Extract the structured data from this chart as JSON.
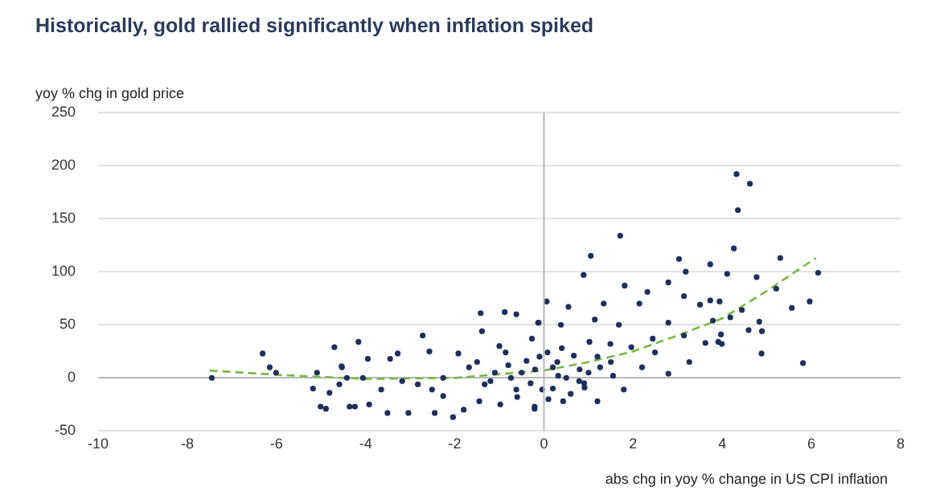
{
  "chart_data": {
    "type": "scatter",
    "title": "Historically, gold rallied significantly when inflation spiked",
    "xlabel": "abs chg in yoy % change in US CPI inflation",
    "ylabel": "yoy % chg in gold price",
    "xlim": [
      -10,
      8
    ],
    "xticks": [
      -10,
      -8,
      -6,
      -4,
      -2,
      0,
      2,
      4,
      6,
      8
    ],
    "ylim": [
      -50,
      250
    ],
    "yticks": [
      -50,
      0,
      50,
      100,
      150,
      200,
      250
    ],
    "grid": "y",
    "legend": false,
    "ref_lines": [
      {
        "axis": "x",
        "value": 0,
        "color": "#b8b8b8"
      }
    ],
    "marker": "circle",
    "series": [
      {
        "type": "scatter",
        "color": "#1f2f5c",
        "x": [
          4.32,
          4.62,
          4.35,
          4.26,
          5.3,
          3.73,
          4.11,
          4.77,
          6.15,
          3.73,
          3.94,
          5.21,
          4.44,
          4.18,
          5.56,
          5.96,
          4.83,
          4.59,
          4.89,
          3.97,
          3.91,
          3.99,
          3.62,
          4.88,
          5.81,
          1.71,
          1.05,
          0.89,
          3.03,
          3.18,
          1.81,
          2.32,
          2.79,
          3.14,
          0.06,
          0.55,
          1.34,
          2.14,
          3.5,
          -0.13,
          0.38,
          1.14,
          1.68,
          2.79,
          3.79,
          2.44,
          3.14,
          2.79,
          3.26,
          2.2,
          1.49,
          1.96,
          1.26,
          1.79,
          1.2,
          0.43,
          -0.21,
          0.79,
          0.2,
          0.67,
          1.02,
          -0.27,
          0.08,
          0.32,
          0.91,
          1.55,
          2.49,
          -1.42,
          -0.88,
          -0.62,
          -0.12,
          -2.72,
          -4.16,
          -1.39,
          -1.92,
          -2.57,
          -3.28,
          -3.45,
          -3.95,
          -0.86,
          -0.39,
          -1.68,
          -1.1,
          -2.26,
          -2.83,
          -3.18,
          -3.65,
          -4.06,
          -4.24,
          -3.51,
          -3.04,
          -2.45,
          -2.04,
          -1.8,
          -1.45,
          -0.98,
          -0.21,
          -0.62,
          -2.51,
          -1.33,
          -2.26,
          -3.92,
          -4.53,
          -0.74,
          -0.04,
          -6.31,
          -6.15,
          -6.01,
          -7.45,
          -5.09,
          -4.7,
          -4.54,
          -5.18,
          -5.01,
          -4.89,
          -4.81,
          -4.59,
          -4.36,
          -4.42,
          -0.5,
          -0.3,
          0.2,
          0.5,
          0.8,
          -0.8,
          -1.2,
          0.3,
          -0.1,
          0.6,
          1.0,
          1.5,
          -1.5,
          -0.6,
          0.4,
          -1.0,
          0.1,
          1.2,
          -0.2,
          0.9
        ],
        "values": [
          192,
          183,
          158,
          122,
          113,
          107,
          98,
          95,
          99,
          73,
          72,
          84,
          64,
          57,
          66,
          72,
          53,
          45,
          44,
          41,
          34,
          32,
          33,
          23,
          14,
          134,
          115,
          97,
          112,
          100,
          87,
          81,
          90,
          77,
          72,
          67,
          70,
          70,
          69,
          52,
          50,
          55,
          50,
          52,
          54,
          37,
          40,
          4,
          15,
          10,
          32,
          29,
          10,
          -11,
          -22,
          -22,
          -29,
          -3,
          10,
          21,
          34,
          37,
          24,
          2,
          -9,
          2,
          24,
          61,
          62,
          60,
          52,
          40,
          34,
          44,
          23,
          25,
          23,
          18,
          18,
          24,
          16,
          10,
          5,
          0,
          -6,
          -3,
          -11,
          0,
          -27,
          -33,
          -33,
          -33,
          -37,
          -30,
          -22,
          -25,
          -27,
          -11,
          -11,
          -6,
          -17,
          -25,
          10,
          0,
          -11,
          23,
          10,
          5,
          0,
          5,
          29,
          11,
          -10,
          -27,
          -29,
          -14,
          -6,
          -27,
          0,
          5,
          -5,
          -10,
          0,
          8,
          12,
          -3,
          15,
          20,
          -15,
          5,
          15,
          15,
          -18,
          28,
          30,
          -20,
          20,
          8,
          -5
        ]
      },
      {
        "type": "line",
        "color": "#7ab648",
        "line_style": "dashed",
        "marker": "none",
        "x": [
          -7.5,
          -6,
          -4,
          -2,
          0,
          1,
          2,
          3,
          4,
          5,
          6.1
        ],
        "values": [
          7,
          3,
          -1,
          0,
          7,
          15,
          25,
          40,
          56,
          82,
          113
        ]
      }
    ]
  }
}
